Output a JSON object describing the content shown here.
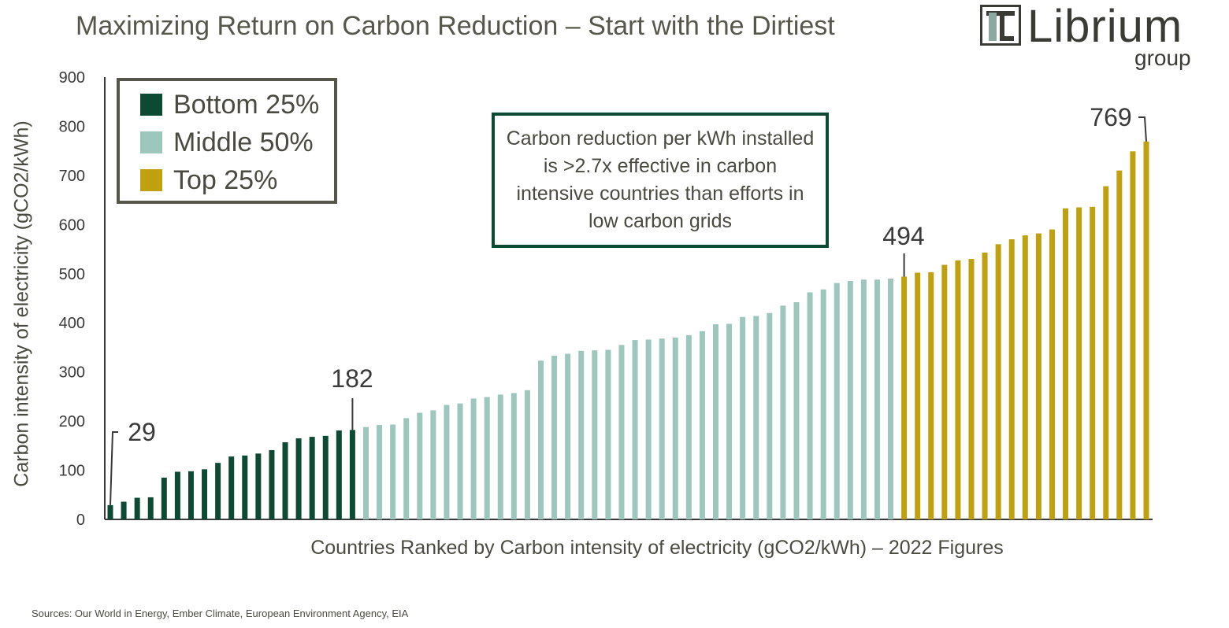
{
  "title": "Maximizing Return on Carbon Reduction – Start with the Dirtiest",
  "logo": {
    "word": "Librium",
    "sub": "group"
  },
  "source": "Sources: Our World in Energy, Ember Climate, European Environment Agency, EIA",
  "legend": {
    "items": [
      {
        "label": "Bottom 25%",
        "color": "#0d4a34"
      },
      {
        "label": "Middle 50%",
        "color": "#9dc6bc"
      },
      {
        "label": "Top 25%",
        "color": "#bfa00f"
      }
    ]
  },
  "note": "Carbon reduction per kWh installed is >2.7x effective in carbon intensive countries than efforts in low carbon grids",
  "chart_data": {
    "type": "bar",
    "xlabel": "Countries Ranked by Carbon intensity of electricity (gCO2/kWh) – 2022 Figures",
    "ylabel": "Carbon intensity of electricity (gCO2/kWh)",
    "ylim": [
      0,
      900
    ],
    "yticks": [
      0,
      100,
      200,
      300,
      400,
      500,
      600,
      700,
      800,
      900
    ],
    "grid": false,
    "legend_placement": "top-left",
    "series": [
      {
        "name": "Bottom 25%",
        "color": "#0d4a34",
        "values": [
          29,
          36,
          44,
          45,
          85,
          97,
          98,
          102,
          115,
          128,
          130,
          134,
          141,
          157,
          165,
          168,
          170,
          181,
          182
        ]
      },
      {
        "name": "Middle 50%",
        "color": "#9dc6bc",
        "values": [
          188,
          192,
          193,
          206,
          217,
          222,
          233,
          236,
          246,
          249,
          254,
          257,
          263,
          323,
          333,
          337,
          343,
          344,
          345,
          355,
          365,
          366,
          368,
          370,
          375,
          383,
          397,
          398,
          412,
          414,
          420,
          435,
          442,
          462,
          468,
          481,
          485,
          488,
          488,
          490
        ]
      },
      {
        "name": "Top 25%",
        "color": "#bfa00f",
        "values": [
          494,
          502,
          503,
          518,
          527,
          530,
          543,
          560,
          570,
          578,
          582,
          590,
          633,
          635,
          636,
          678,
          710,
          749,
          769
        ]
      }
    ],
    "annotations": [
      {
        "text": "29",
        "index": 0,
        "value": 29
      },
      {
        "text": "182",
        "index": 18,
        "value": 182
      },
      {
        "text": "494",
        "index": 59,
        "value": 494
      },
      {
        "text": "769",
        "index": 77,
        "value": 769
      }
    ]
  }
}
